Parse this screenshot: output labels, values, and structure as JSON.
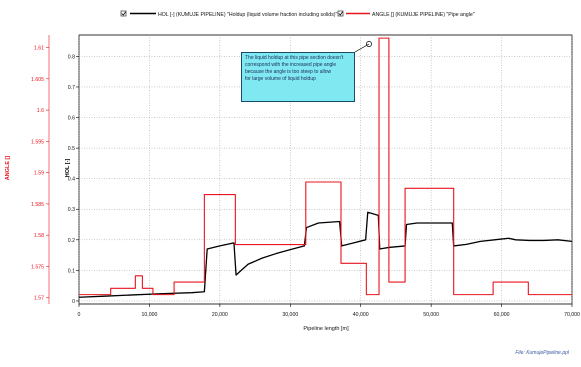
{
  "chart_data": {
    "type": "line",
    "legend": {
      "placement": "top-center",
      "entries": [
        {
          "label": "HOL [-] (KUMUJE PIPELINE) \"Holdup (liquid volume fraction including solids)\"",
          "color": "#000000",
          "checked": true
        },
        {
          "label": "ANGLE [] (KUMUJE PIPELINE) \"Pipe angle\"",
          "color": "#e8141e",
          "checked": true
        }
      ]
    },
    "xlabel": "Pipeline length [m]",
    "xlim": [
      0,
      70000
    ],
    "xticks": [
      "0",
      "10,000",
      "20,000",
      "30,000",
      "40,000",
      "50,000",
      "60,000",
      "70,000"
    ],
    "left_axis": {
      "label": "ANGLE []",
      "color": "#e8141e",
      "lim": [
        1.569,
        1.612
      ],
      "ticks": [
        "1.57",
        "1.575",
        "1.58",
        "1.585",
        "1.59",
        "1.595",
        "1.6",
        "1.605",
        "1.61"
      ]
    },
    "right_axis": {
      "label": "HOL [-]",
      "color": "#000000",
      "lim": [
        -0.01,
        0.87
      ],
      "ticks": [
        "0",
        "0.1",
        "0.2",
        "0.3",
        "0.4",
        "0.5",
        "0.6",
        "0.7",
        "0.8"
      ]
    },
    "grid": true,
    "series": [
      {
        "name": "HOL",
        "axis": "right",
        "color": "#000000",
        "points": [
          [
            0,
            0.012
          ],
          [
            4000,
            0.016
          ],
          [
            8000,
            0.02
          ],
          [
            12000,
            0.024
          ],
          [
            16000,
            0.027
          ],
          [
            17800,
            0.03
          ],
          [
            18200,
            0.17
          ],
          [
            20000,
            0.18
          ],
          [
            22000,
            0.19
          ],
          [
            22300,
            0.085
          ],
          [
            24000,
            0.12
          ],
          [
            26000,
            0.14
          ],
          [
            28000,
            0.155
          ],
          [
            30000,
            0.168
          ],
          [
            32000,
            0.18
          ],
          [
            32300,
            0.24
          ],
          [
            34000,
            0.255
          ],
          [
            37000,
            0.26
          ],
          [
            37300,
            0.18
          ],
          [
            39000,
            0.19
          ],
          [
            40700,
            0.2
          ],
          [
            41000,
            0.29
          ],
          [
            42500,
            0.28
          ],
          [
            42700,
            0.17
          ],
          [
            44000,
            0.175
          ],
          [
            46300,
            0.18
          ],
          [
            46500,
            0.25
          ],
          [
            48000,
            0.255
          ],
          [
            53000,
            0.255
          ],
          [
            53200,
            0.18
          ],
          [
            55000,
            0.185
          ],
          [
            57000,
            0.195
          ],
          [
            59000,
            0.2
          ],
          [
            61000,
            0.205
          ],
          [
            62000,
            0.2
          ],
          [
            64000,
            0.198
          ],
          [
            66000,
            0.198
          ],
          [
            68000,
            0.2
          ],
          [
            70000,
            0.195
          ]
        ]
      },
      {
        "name": "ANGLE",
        "axis": "left",
        "color": "#e8141e",
        "points": [
          [
            0,
            1.5705
          ],
          [
            4500,
            1.5705
          ],
          [
            4500,
            1.5715
          ],
          [
            8000,
            1.5715
          ],
          [
            8000,
            1.5735
          ],
          [
            9000,
            1.5735
          ],
          [
            9000,
            1.5715
          ],
          [
            10500,
            1.5715
          ],
          [
            10500,
            1.5705
          ],
          [
            13500,
            1.5705
          ],
          [
            13500,
            1.5725
          ],
          [
            17800,
            1.5725
          ],
          [
            17800,
            1.5865
          ],
          [
            22200,
            1.5865
          ],
          [
            22200,
            1.5785
          ],
          [
            32200,
            1.5785
          ],
          [
            32200,
            1.5885
          ],
          [
            37200,
            1.5885
          ],
          [
            37200,
            1.5755
          ],
          [
            40800,
            1.5755
          ],
          [
            40800,
            1.5705
          ],
          [
            42600,
            1.5705
          ],
          [
            42600,
            1.6115
          ],
          [
            44000,
            1.6115
          ],
          [
            44000,
            1.5725
          ],
          [
            46300,
            1.5725
          ],
          [
            46300,
            1.5875
          ],
          [
            53200,
            1.5875
          ],
          [
            53200,
            1.5705
          ],
          [
            58800,
            1.5705
          ],
          [
            58800,
            1.5725
          ],
          [
            63800,
            1.5725
          ],
          [
            63800,
            1.5705
          ],
          [
            70000,
            1.5705
          ]
        ]
      }
    ],
    "annotation": {
      "lines": [
        "The liquid holdup at this pipe section doesn't",
        "correspond with the increased pipe angle",
        "because the angle is too steep to allow",
        "for large volume of liquid holdup"
      ],
      "fill": "#80e8f0",
      "points_to": {
        "x": 41000,
        "hol": 0.845
      }
    }
  },
  "footer": {
    "filename": "File: KumujePipeline.ppl"
  }
}
